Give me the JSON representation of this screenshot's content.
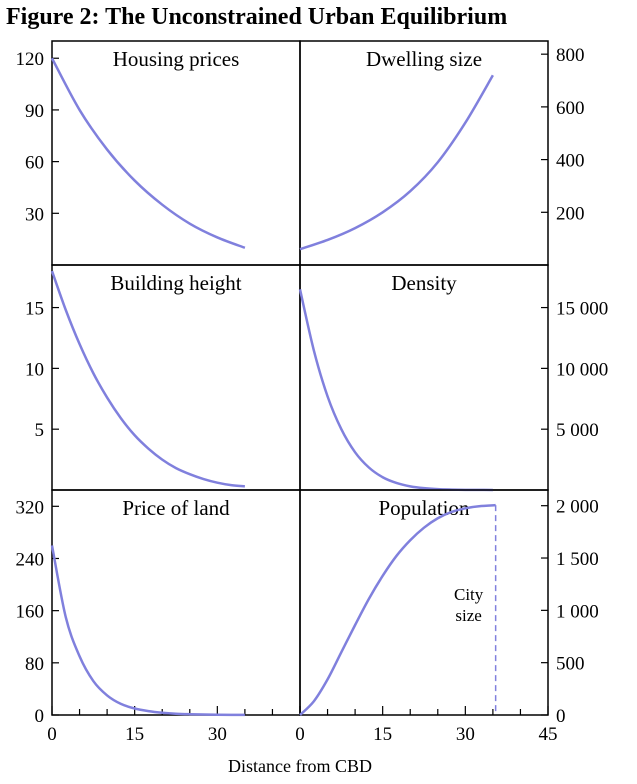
{
  "figure_title": "Figure 2: The Unconstrained Urban Equilibrium",
  "x_axis_label": "Distance from CBD",
  "colors": {
    "curve": "#8080dd",
    "frame": "#000000"
  },
  "chart_data": [
    {
      "type": "line",
      "title": "Housing prices",
      "y_axis_side": "left",
      "ylim": [
        0,
        130
      ],
      "yticks": [
        30,
        60,
        90,
        120
      ],
      "ytick_labels": [
        "30",
        "60",
        "90",
        "120"
      ],
      "xlim": [
        0,
        45
      ],
      "series": [
        {
          "x": [
            0,
            5,
            10,
            15,
            20,
            25,
            30,
            35
          ],
          "y": [
            120,
            90,
            67,
            49,
            35,
            24,
            16,
            10
          ]
        }
      ]
    },
    {
      "type": "line",
      "title": "Dwelling size",
      "y_axis_side": "right",
      "ylim": [
        0,
        850
      ],
      "yticks": [
        200,
        400,
        600,
        800
      ],
      "ytick_labels": [
        "200",
        "400",
        "600",
        "800"
      ],
      "xlim": [
        0,
        45
      ],
      "series": [
        {
          "x": [
            0,
            5,
            10,
            15,
            20,
            25,
            30,
            35
          ],
          "y": [
            60,
            95,
            140,
            200,
            280,
            390,
            540,
            720
          ]
        }
      ]
    },
    {
      "type": "line",
      "title": "Building height",
      "y_axis_side": "left",
      "ylim": [
        0,
        18.5
      ],
      "yticks": [
        5,
        10,
        15
      ],
      "ytick_labels": [
        "5",
        "10",
        "15"
      ],
      "xlim": [
        0,
        45
      ],
      "series": [
        {
          "x": [
            0,
            2.5,
            5,
            7.5,
            10,
            12.5,
            15,
            17.5,
            20,
            22.5,
            25,
            27.5,
            30,
            32.5,
            35
          ],
          "y": [
            18,
            14.8,
            12,
            9.6,
            7.6,
            5.9,
            4.5,
            3.4,
            2.5,
            1.8,
            1.3,
            0.9,
            0.6,
            0.4,
            0.3
          ]
        }
      ]
    },
    {
      "type": "line",
      "title": "Density",
      "y_axis_side": "right",
      "ylim": [
        0,
        18500
      ],
      "yticks": [
        5000,
        10000,
        15000
      ],
      "ytick_labels": [
        "5 000",
        "10 000",
        "15 000"
      ],
      "xlim": [
        0,
        45
      ],
      "series": [
        {
          "x": [
            0,
            2.5,
            5,
            7.5,
            10,
            12.5,
            15,
            17.5,
            20,
            22.5,
            25,
            27.5,
            30,
            32.5,
            35
          ],
          "y": [
            16500,
            11500,
            7700,
            5000,
            3100,
            1850,
            1050,
            580,
            300,
            150,
            70,
            35,
            15,
            8,
            5
          ]
        }
      ]
    },
    {
      "type": "line",
      "title": "Price of land",
      "y_axis_side": "left",
      "ylim": [
        0,
        345
      ],
      "yticks": [
        0,
        80,
        160,
        240,
        320
      ],
      "ytick_labels": [
        "0",
        "80",
        "160",
        "240",
        "320"
      ],
      "xlim": [
        0,
        45
      ],
      "xticks": [
        0,
        15,
        30
      ],
      "xtick_labels": [
        "0",
        "15",
        "30"
      ],
      "series": [
        {
          "x": [
            0,
            2.5,
            5,
            7.5,
            10,
            12.5,
            15,
            17.5,
            20,
            22.5,
            25,
            27.5,
            30,
            32.5,
            35
          ],
          "y": [
            260,
            150,
            90,
            52,
            30,
            17,
            10,
            6,
            3.5,
            2,
            1.2,
            0.7,
            0.4,
            0.2,
            0.1
          ]
        }
      ]
    },
    {
      "type": "line",
      "title": "Population",
      "y_axis_side": "right",
      "ylim": [
        0,
        2150
      ],
      "yticks": [
        0,
        500,
        1000,
        1500,
        2000
      ],
      "ytick_labels": [
        "0",
        "500",
        "1 000",
        "1 500",
        "2 000"
      ],
      "xlim": [
        0,
        45
      ],
      "xticks": [
        0,
        15,
        30,
        45
      ],
      "xtick_labels": [
        "0",
        "15",
        "30",
        "45"
      ],
      "annotation": [
        "City",
        "size"
      ],
      "city_size_x": 35.5,
      "series": [
        {
          "x": [
            0,
            2.5,
            5,
            7.5,
            10,
            12.5,
            15,
            17.5,
            20,
            22.5,
            25,
            27.5,
            30,
            32.5,
            35.5
          ],
          "y": [
            0,
            130,
            340,
            600,
            860,
            1110,
            1330,
            1520,
            1670,
            1790,
            1880,
            1940,
            1975,
            1995,
            2005
          ]
        }
      ]
    }
  ]
}
